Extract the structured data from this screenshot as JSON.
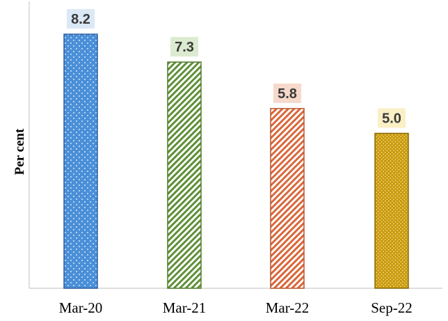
{
  "chart_data": {
    "type": "bar",
    "title": "",
    "xlabel": "",
    "ylabel": "Per cent",
    "categories": [
      "Mar-20",
      "Mar-21",
      "Mar-22",
      "Sep-22"
    ],
    "values": [
      8.2,
      7.3,
      5.8,
      5.0
    ],
    "data_labels": [
      "8.2",
      "7.3",
      "5.8",
      "5.0"
    ],
    "ylim": [
      0,
      9.0
    ],
    "grid": false,
    "legend": "none",
    "bar_styles": [
      {
        "fill": "#4a8fd8",
        "stroke": "#2d5f9e",
        "pattern": "dots",
        "label_bg": "#dbe8f6"
      },
      {
        "fill": "#5e8f36",
        "stroke": "#4f7a2c",
        "pattern": "diagonal-stripes",
        "label_bg": "#dcebd0"
      },
      {
        "fill": "#d9673a",
        "stroke": "#b8542c",
        "pattern": "diagonal-stripes",
        "label_bg": "#f7d9cc"
      },
      {
        "fill": "#c99a0e",
        "stroke": "#8a6a0a",
        "pattern": "dense-dots",
        "label_bg": "#fbefc5"
      }
    ]
  }
}
